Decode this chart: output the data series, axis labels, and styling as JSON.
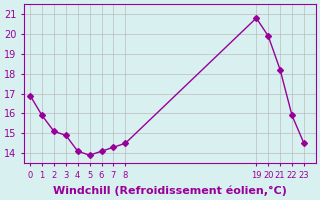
{
  "x": [
    0,
    1,
    2,
    3,
    4,
    5,
    6,
    7,
    8,
    19,
    20,
    21,
    22,
    23
  ],
  "y": [
    16.9,
    15.9,
    15.1,
    14.9,
    14.1,
    13.9,
    14.1,
    14.3,
    14.5,
    20.8,
    19.9,
    18.2,
    15.9,
    14.5
  ],
  "line_color": "#990099",
  "marker": "D",
  "markersize": 3,
  "linewidth": 1,
  "xlabel": "Windchill (Refroidissement éolien,°C)",
  "xlabel_fontsize": 8,
  "bg_color": "#d8f0f0",
  "grid_color": "#bbbbbb",
  "tick_color": "#990099",
  "label_color": "#990099",
  "xlim": [
    -0.5,
    24
  ],
  "ylim": [
    13.5,
    21.5
  ],
  "yticks": [
    14,
    15,
    16,
    17,
    18,
    19,
    20,
    21
  ],
  "xticks": [
    0,
    1,
    2,
    3,
    4,
    5,
    6,
    7,
    8,
    19,
    20,
    21,
    22,
    23
  ],
  "xtick_labels": [
    "0",
    "1",
    "2",
    "3",
    "4",
    "5",
    "6",
    "7",
    "8",
    "19",
    "20",
    "21",
    "22",
    "23"
  ]
}
